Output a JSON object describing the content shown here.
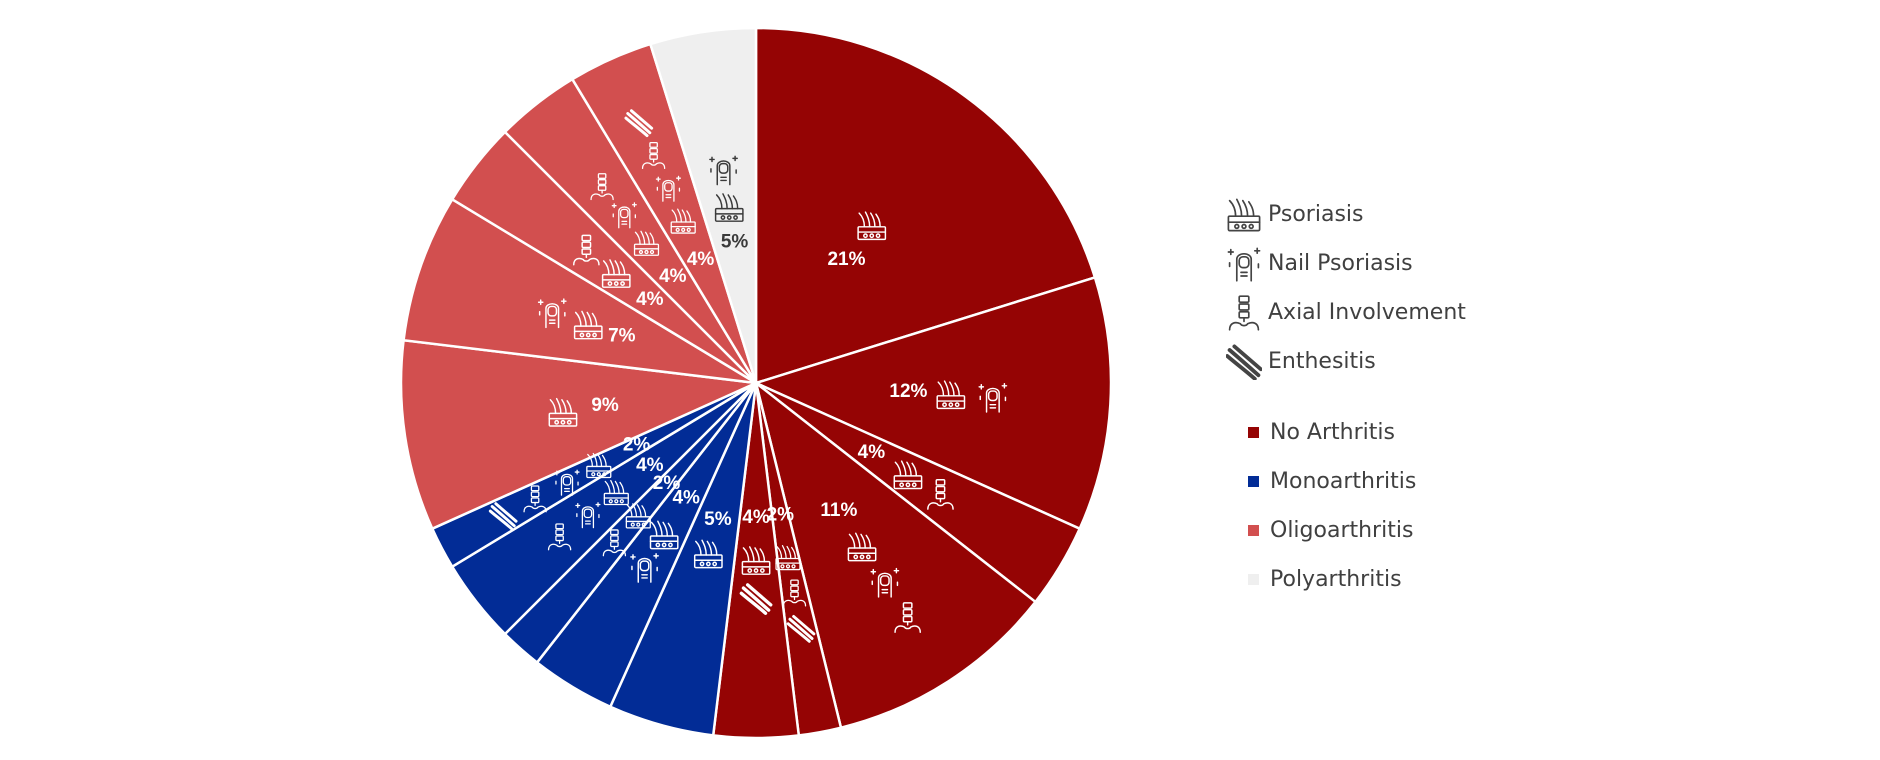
{
  "chart_data": {
    "type": "pie",
    "title": "",
    "categories": [
      "No Arthritis",
      "Monoarthritis",
      "Oligoarthritis",
      "Polyarthritis"
    ],
    "colors": {
      "No Arthritis": "#950404",
      "Monoarthritis": "#022c96",
      "Oligoarthritis": "#d24f4f",
      "Polyarthritis": "#efefef"
    },
    "slices": [
      {
        "label": "21%",
        "value": 21,
        "category": "No Arthritis",
        "features": [
          "Psoriasis"
        ]
      },
      {
        "label": "12%",
        "value": 12,
        "category": "No Arthritis",
        "features": [
          "Psoriasis",
          "Nail Psoriasis"
        ]
      },
      {
        "label": "4%",
        "value": 4,
        "category": "No Arthritis",
        "features": [
          "Psoriasis",
          "Axial Involvement"
        ]
      },
      {
        "label": "11%",
        "value": 11,
        "category": "No Arthritis",
        "features": [
          "Psoriasis",
          "Nail Psoriasis",
          "Axial Involvement"
        ]
      },
      {
        "label": "2%",
        "value": 2,
        "category": "No Arthritis",
        "features": [
          "Psoriasis",
          "Axial Involvement",
          "Enthesitis"
        ]
      },
      {
        "label": "4%",
        "value": 4,
        "category": "No Arthritis",
        "features": [
          "Psoriasis",
          "Enthesitis"
        ]
      },
      {
        "label": "5%",
        "value": 5,
        "category": "Monoarthritis",
        "features": [
          "Psoriasis"
        ]
      },
      {
        "label": "4%",
        "value": 4,
        "category": "Monoarthritis",
        "features": [
          "Psoriasis",
          "Nail Psoriasis"
        ]
      },
      {
        "label": "2%",
        "value": 2,
        "category": "Monoarthritis",
        "features": [
          "Psoriasis",
          "Axial Involvement"
        ]
      },
      {
        "label": "4%",
        "value": 4,
        "category": "Monoarthritis",
        "features": [
          "Psoriasis",
          "Nail Psoriasis",
          "Axial Involvement"
        ]
      },
      {
        "label": "2%",
        "value": 2,
        "category": "Monoarthritis",
        "features": [
          "Psoriasis",
          "Nail Psoriasis",
          "Axial Involvement",
          "Enthesitis"
        ]
      },
      {
        "label": "9%",
        "value": 9,
        "category": "Oligoarthritis",
        "features": [
          "Psoriasis"
        ]
      },
      {
        "label": "7%",
        "value": 7,
        "category": "Oligoarthritis",
        "features": [
          "Psoriasis",
          "Nail Psoriasis"
        ]
      },
      {
        "label": "4%",
        "value": 4,
        "category": "Oligoarthritis",
        "features": [
          "Psoriasis",
          "Axial Involvement"
        ]
      },
      {
        "label": "4%",
        "value": 4,
        "category": "Oligoarthritis",
        "features": [
          "Psoriasis",
          "Nail Psoriasis",
          "Axial Involvement"
        ]
      },
      {
        "label": "4%",
        "value": 4,
        "category": "Oligoarthritis",
        "features": [
          "Psoriasis",
          "Nail Psoriasis",
          "Axial Involvement",
          "Enthesitis"
        ]
      },
      {
        "label": "5%",
        "value": 5,
        "category": "Polyarthritis",
        "features": [
          "Psoriasis",
          "Nail Psoriasis"
        ]
      }
    ]
  },
  "legend": {
    "features": [
      {
        "label": "Psoriasis",
        "icon": "psoriasis-skin-icon"
      },
      {
        "label": "Nail Psoriasis",
        "icon": "nail-icon"
      },
      {
        "label": "Axial Involvement",
        "icon": "spine-icon"
      },
      {
        "label": "Enthesitis",
        "icon": "tendon-icon"
      }
    ],
    "categories": [
      {
        "label": "No Arthritis",
        "color": "#950404"
      },
      {
        "label": "Monoarthritis",
        "color": "#022c96"
      },
      {
        "label": "Oligoarthritis",
        "color": "#d24f4f"
      },
      {
        "label": "Polyarthritis",
        "color": "#efefef"
      }
    ]
  }
}
